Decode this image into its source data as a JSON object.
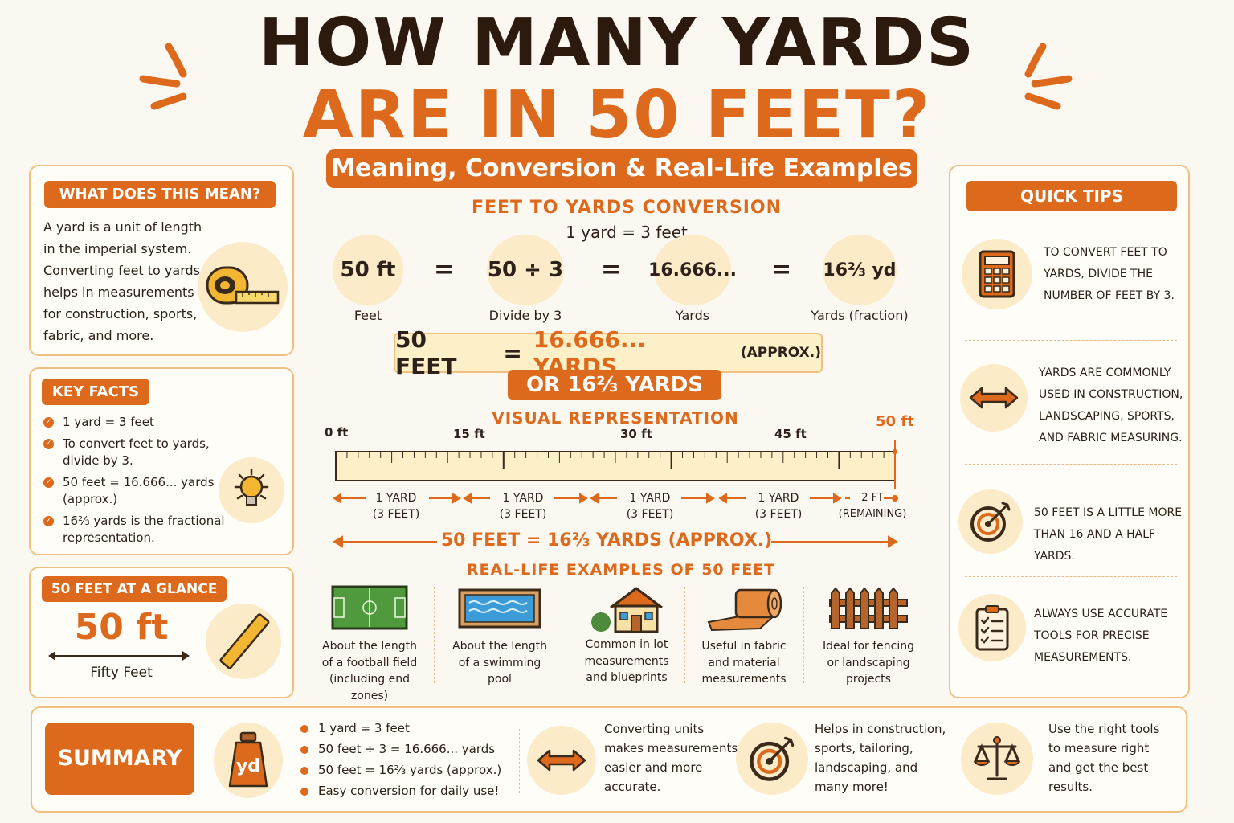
{
  "header": {
    "title_line1": "HOW MANY YARDS",
    "title_line2": "ARE IN 50 FEET?",
    "subtitle": "Meaning, Conversion & Real-Life Examples"
  },
  "colors": {
    "accent": "#dd6a1c",
    "dark": "#2d1a0e",
    "cream": "#fcebc8",
    "background": "#fbf8f1"
  },
  "meaning": {
    "heading": "WHAT DOES THIS MEAN?",
    "lines": [
      "A yard is a unit of length",
      "in the imperial system.",
      "Converting feet to yards",
      "helps in measurements",
      "for construction, sports,",
      "fabric, and more."
    ],
    "icon": "tape-measure-icon"
  },
  "key_facts": {
    "heading": "KEY FACTS",
    "items": [
      {
        "line1": "1 yard = 3 feet",
        "line2": ""
      },
      {
        "line1": "To convert feet to yards,",
        "line2": "divide by 3."
      },
      {
        "line1": "50 feet = 16.666... yards",
        "line2": "(approx.)"
      },
      {
        "line1": "16⅔ yards is the fractional",
        "line2": "representation."
      }
    ],
    "icon": "lightbulb-icon"
  },
  "glance": {
    "heading": "50 FEET AT A GLANCE",
    "value": "50 ft",
    "caption": "Fifty Feet",
    "icon": "ruler-icon"
  },
  "conversion": {
    "heading": "FEET TO YARDS CONVERSION",
    "rule": "1 yard = 3 feet",
    "steps": [
      {
        "value": "50 ft",
        "label": "Feet"
      },
      {
        "value": "50 ÷ 3",
        "label": "Divide by 3"
      },
      {
        "value": "16.666...",
        "label": "Yards"
      },
      {
        "value": "16⅔ yd",
        "label": "Yards (fraction)"
      }
    ],
    "equals": "=",
    "result_left": "50 FEET",
    "result_eq": "=",
    "result_value": "16.666... YARDS",
    "result_note": "(APPROX.)",
    "result_alt": "OR 16⅔ YARDS"
  },
  "visual": {
    "heading": "VISUAL REPRESENTATION",
    "ticks": [
      "0 ft",
      "15 ft",
      "30 ft",
      "45 ft"
    ],
    "end_tick": "50 ft",
    "segments": [
      {
        "line1": "1 YARD",
        "line2": "(3 FEET)"
      },
      {
        "line1": "1 YARD",
        "line2": "(3 FEET)"
      },
      {
        "line1": "1 YARD",
        "line2": "(3 FEET)"
      },
      {
        "line1": "1 YARD",
        "line2": "(3 FEET)"
      },
      {
        "line1": "2 FT",
        "line2": "(REMAINING)"
      }
    ],
    "total": "50 FEET = 16⅔ YARDS (APPROX.)"
  },
  "examples": {
    "heading": "REAL-LIFE EXAMPLES OF 50 FEET",
    "items": [
      {
        "icon": "football-field-icon",
        "lines": [
          "About the length",
          "of a football field",
          "(including end zones)"
        ]
      },
      {
        "icon": "swimming-pool-icon",
        "lines": [
          "About the length",
          "of a swimming",
          "pool"
        ]
      },
      {
        "icon": "house-icon",
        "lines": [
          "Common in lot",
          "measurements",
          "and blueprints"
        ]
      },
      {
        "icon": "fabric-roll-icon",
        "lines": [
          "Useful in fabric",
          "and material",
          "measurements"
        ]
      },
      {
        "icon": "fence-icon",
        "lines": [
          "Ideal for fencing",
          "or landscaping",
          "projects"
        ]
      }
    ]
  },
  "tips": {
    "heading": "QUICK TIPS",
    "items": [
      {
        "icon": "calculator-icon",
        "lines": [
          "TO CONVERT FEET TO",
          "YARDS, DIVIDE THE",
          "NUMBER OF FEET BY 3."
        ]
      },
      {
        "icon": "double-arrow-icon",
        "lines": [
          "YARDS ARE COMMONLY",
          "USED IN CONSTRUCTION,",
          "LANDSCAPING, SPORTS,",
          "AND FABRIC MEASURING."
        ]
      },
      {
        "icon": "target-icon",
        "lines": [
          "50 FEET IS A LITTLE MORE",
          "THAN 16 AND A HALF YARDS."
        ]
      },
      {
        "icon": "checklist-icon",
        "lines": [
          "ALWAYS USE ACCURATE",
          "TOOLS FOR PRECISE",
          "MEASUREMENTS."
        ]
      }
    ]
  },
  "summary": {
    "heading": "SUMMARY",
    "weight_label": "yd",
    "bullets": [
      "1 yard = 3 feet",
      "50 feet ÷ 3 = 16.666... yards",
      "50 feet = 16⅔ yards (approx.)",
      "Easy conversion for daily use!"
    ],
    "blocks": [
      {
        "icon": "double-arrow-icon",
        "lines": [
          "Converting units",
          "makes measurements",
          "easier and more",
          "accurate."
        ]
      },
      {
        "icon": "target-icon",
        "lines": [
          "Helps in construction,",
          "sports, tailoring,",
          "landscaping, and",
          "many more!"
        ]
      },
      {
        "icon": "balance-scale-icon",
        "lines": [
          "Use the right tools",
          "to measure right",
          "and get the best",
          "results."
        ]
      }
    ]
  }
}
